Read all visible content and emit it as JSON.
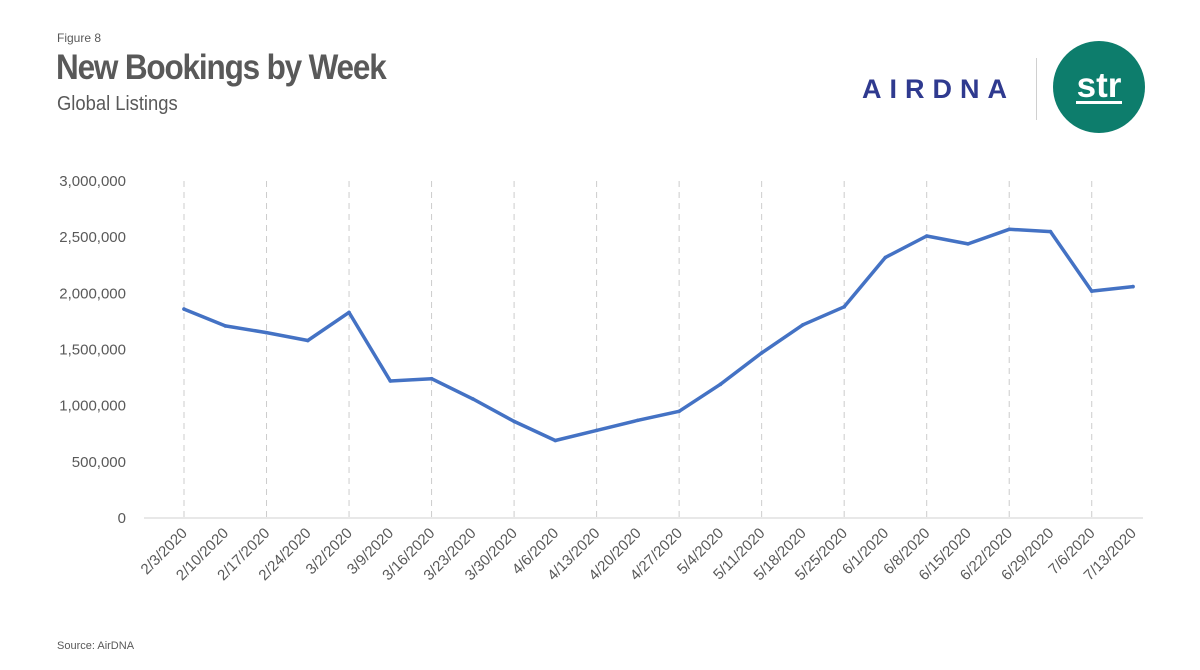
{
  "header": {
    "figure_label": "Figure 8",
    "title": "New Bookings by Week",
    "subtitle": "Global Listings"
  },
  "logos": {
    "airdna_text": "AIRDNA",
    "str_text": "str",
    "airdna_color": "#2f3a8f",
    "str_color": "#0d7d6c"
  },
  "source": "Source: AirDNA",
  "chart_data": {
    "type": "line",
    "title": "New Bookings by Week",
    "subtitle": "Global Listings",
    "xlabel": "",
    "ylabel": "",
    "ylim": [
      0,
      3000000
    ],
    "y_ticks": [
      0,
      500000,
      1000000,
      1500000,
      2000000,
      2500000,
      3000000
    ],
    "y_tick_labels": [
      "0",
      "500,000",
      "1,000,000",
      "1,500,000",
      "2,000,000",
      "2,500,000",
      "3,000,000"
    ],
    "categories": [
      "2/3/2020",
      "2/10/2020",
      "2/17/2020",
      "2/24/2020",
      "3/2/2020",
      "3/9/2020",
      "3/16/2020",
      "3/23/2020",
      "3/30/2020",
      "4/6/2020",
      "4/13/2020",
      "4/20/2020",
      "4/27/2020",
      "5/4/2020",
      "5/11/2020",
      "5/18/2020",
      "5/25/2020",
      "6/1/2020",
      "6/8/2020",
      "6/15/2020",
      "6/22/2020",
      "6/29/2020",
      "7/6/2020",
      "7/13/2020"
    ],
    "series": [
      {
        "color": "#4472c4",
        "values": [
          1860000,
          1710000,
          1650000,
          1580000,
          1830000,
          1220000,
          1240000,
          1060000,
          860000,
          690000,
          780000,
          870000,
          950000,
          1190000,
          1470000,
          1720000,
          1880000,
          2320000,
          2510000,
          2440000,
          2570000,
          2550000,
          2020000,
          2060000
        ]
      }
    ],
    "grid": "vertical dashed",
    "legend": "none"
  },
  "colors": {
    "text": "#595959",
    "gridline": "#cccccc",
    "line": "#4472c4"
  }
}
